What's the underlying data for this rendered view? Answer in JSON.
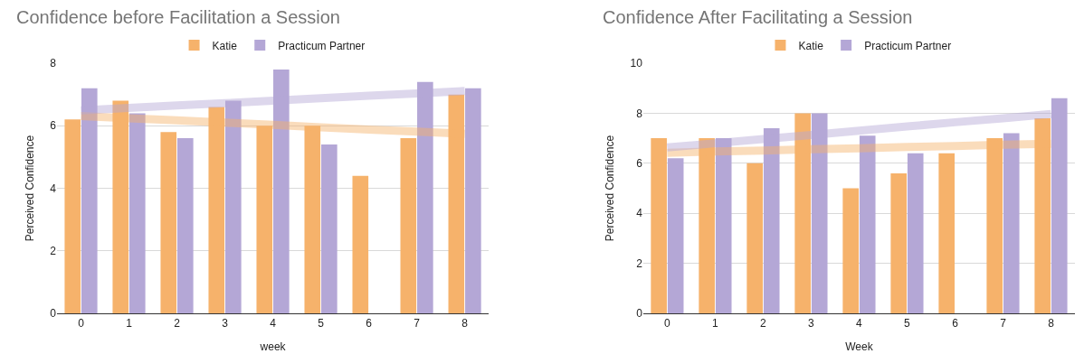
{
  "chart_data": [
    {
      "type": "bar",
      "title": "Confidence before Facilitation a Session",
      "xlabel": "week",
      "ylabel": "Perceived Confidence",
      "x": [
        0,
        1,
        2,
        3,
        4,
        5,
        6,
        7,
        8
      ],
      "xlim": [
        -0.5,
        8.5
      ],
      "xticks": [
        0,
        1,
        2,
        3,
        4,
        5,
        6,
        7,
        8
      ],
      "ylim": [
        0,
        8
      ],
      "yticks": [
        0,
        2,
        4,
        6,
        8
      ],
      "grid": "y",
      "legend": "top",
      "series": [
        {
          "name": "Katie",
          "color": "#f6b26b",
          "values": [
            6.2,
            6.8,
            5.8,
            6.6,
            6.0,
            6.0,
            4.4,
            5.6,
            7.0
          ]
        },
        {
          "name": "Practicum Partner",
          "color": "#b4a7d6",
          "values": [
            7.2,
            6.4,
            5.6,
            6.8,
            7.8,
            5.4,
            null,
            7.4,
            7.2
          ]
        },
        {
          "type": "line",
          "color": "#f6b26b",
          "values": [
            6.31,
            6.24,
            6.17,
            6.1,
            6.03,
            5.95,
            5.88,
            5.81,
            5.74
          ]
        },
        {
          "type": "line",
          "color": "#b4a7d6",
          "values": [
            6.49,
            6.57,
            6.65,
            6.72,
            6.8,
            6.88,
            6.96,
            7.03,
            7.11
          ]
        }
      ]
    },
    {
      "type": "bar",
      "title": "Confidence After Facilitating a Session",
      "xlabel": "Week",
      "ylabel": "Perceived Confidence",
      "x": [
        0,
        1,
        2,
        3,
        4,
        5,
        6,
        7,
        8
      ],
      "xlim": [
        -0.5,
        8.5
      ],
      "xticks": [
        0,
        1,
        2,
        3,
        4,
        5,
        6,
        7,
        8
      ],
      "ylim": [
        0,
        10
      ],
      "yticks": [
        0,
        2,
        4,
        6,
        8,
        10
      ],
      "grid": "y",
      "legend": "top",
      "series": [
        {
          "name": "Katie",
          "color": "#f6b26b",
          "values": [
            7.0,
            7.0,
            6.0,
            8.0,
            5.0,
            5.6,
            6.4,
            7.0,
            7.8
          ]
        },
        {
          "name": "Practicum Partner",
          "color": "#b4a7d6",
          "values": [
            6.2,
            7.0,
            7.4,
            8.0,
            7.1,
            6.4,
            null,
            7.2,
            8.6
          ]
        },
        {
          "type": "line",
          "color": "#f6b26b",
          "values": [
            6.42,
            6.47,
            6.51,
            6.56,
            6.6,
            6.65,
            6.69,
            6.74,
            6.78
          ]
        },
        {
          "type": "line",
          "color": "#b4a7d6",
          "values": [
            6.63,
            6.8,
            6.97,
            7.13,
            7.3,
            7.47,
            7.64,
            7.8,
            7.97
          ]
        }
      ]
    }
  ]
}
